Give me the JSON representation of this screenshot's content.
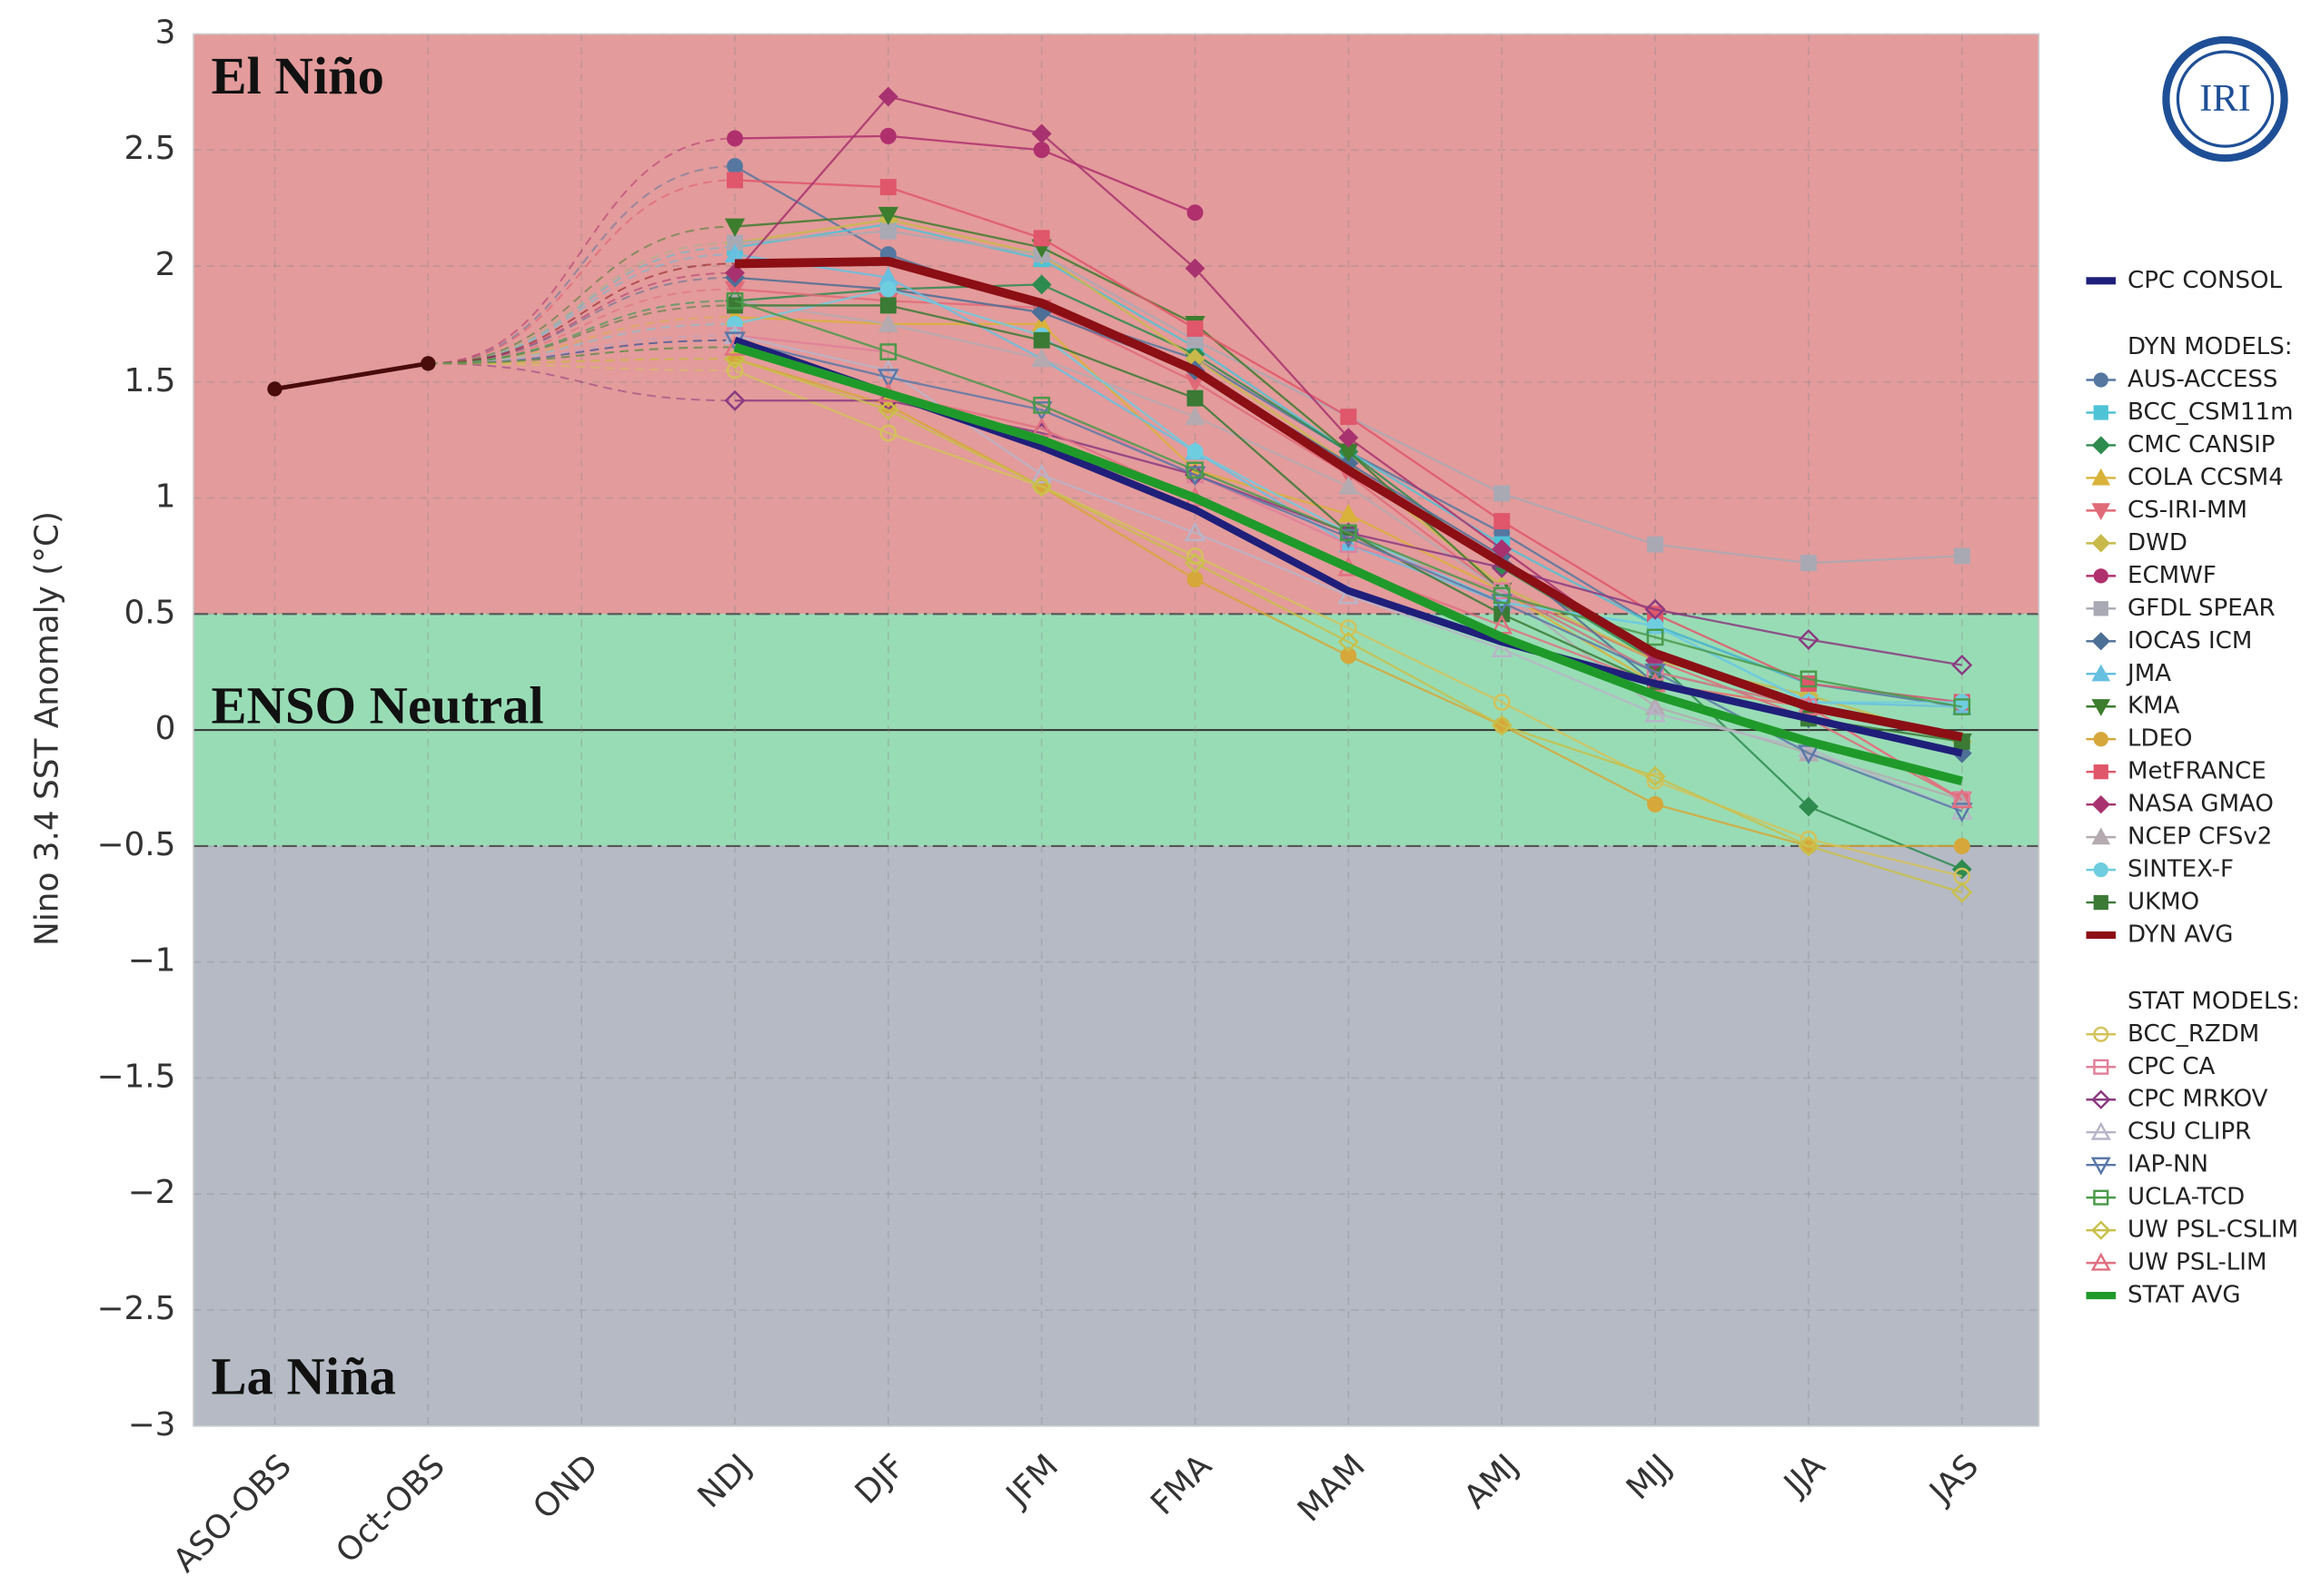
{
  "chart_data": {
    "type": "line",
    "y_label": "Nino 3.4 SST Anomaly (°C)",
    "logo": "IRI",
    "categories": [
      "ASO-OBS",
      "Oct-OBS",
      "OND",
      "NDJ",
      "DJF",
      "JFM",
      "FMA",
      "MAM",
      "AMJ",
      "MJJ",
      "JJA",
      "JAS"
    ],
    "ylim": [
      -3,
      3
    ],
    "yticks": [
      {
        "value": -3,
        "label": "−3"
      },
      {
        "value": -2.5,
        "label": "−2.5"
      },
      {
        "value": -2,
        "label": "−2"
      },
      {
        "value": -1.5,
        "label": "−1.5"
      },
      {
        "value": -1,
        "label": "−1"
      },
      {
        "value": -0.5,
        "label": "−0.5"
      },
      0,
      0.5,
      1,
      1.5,
      2,
      2.5,
      3
    ],
    "grid": true,
    "zones": [
      {
        "label": "El Niño",
        "from": 0.5,
        "to": 3,
        "color": "#e39b9b"
      },
      {
        "label": "ENSO Neutral",
        "from": -0.5,
        "to": 0.5,
        "color": "#98dcb5"
      },
      {
        "label": "La Niña",
        "from": -3,
        "to": -0.5,
        "color": "#b5bac5"
      }
    ],
    "legend_headings": [
      "DYN MODELS:",
      "STAT MODELS:"
    ],
    "observed": {
      "color": "#4a0b0b",
      "values": [
        1.47,
        1.58,
        null,
        null,
        null,
        null,
        null,
        null,
        null,
        null,
        null,
        null
      ]
    },
    "series": [
      {
        "name": "CPC CONSOL",
        "color": "#1f1f7a",
        "width": 5,
        "values": [
          null,
          null,
          null,
          1.68,
          1.45,
          1.22,
          0.95,
          0.6,
          0.38,
          0.2,
          0.05,
          -0.1
        ]
      },
      {
        "name": "AUS-ACCESS",
        "color": "#5577a0",
        "marker": "circle",
        "filled": true,
        "values": [
          null,
          null,
          null,
          2.43,
          2.05,
          1.82,
          1.6,
          1.2,
          0.85,
          0.45,
          0.2,
          0.1
        ]
      },
      {
        "name": "BCC_CSM11m",
        "color": "#4fc3d6",
        "marker": "square",
        "filled": true,
        "values": [
          null,
          null,
          null,
          2.08,
          2.18,
          2.03,
          1.65,
          1.2,
          0.8,
          0.45,
          0.2,
          0.12
        ]
      },
      {
        "name": "CMC CANSIP",
        "color": "#2e8b4f",
        "marker": "diamond",
        "filled": true,
        "values": [
          null,
          null,
          null,
          1.85,
          1.9,
          1.92,
          1.62,
          1.2,
          0.7,
          0.3,
          -0.33,
          -0.6
        ]
      },
      {
        "name": "COLA CCSM4",
        "color": "#d9b23a",
        "marker": "triangle",
        "filled": true,
        "values": [
          null,
          null,
          null,
          1.78,
          1.75,
          1.75,
          1.12,
          0.93,
          0.6,
          0.2,
          0.1,
          -0.3
        ]
      },
      {
        "name": "CS-IRI-MM",
        "color": "#e06a78",
        "marker": "triangle-down",
        "filled": true,
        "values": [
          null,
          null,
          null,
          1.9,
          1.85,
          1.82,
          1.5,
          1.1,
          0.6,
          0.3,
          0.05,
          -0.3
        ]
      },
      {
        "name": "DWD",
        "color": "#c9b94a",
        "marker": "diamond",
        "filled": true,
        "values": [
          null,
          null,
          null,
          2.1,
          2.2,
          2.05,
          1.6,
          1.15,
          0.62,
          0.3,
          0.15,
          -0.05
        ]
      },
      {
        "name": "ECMWF",
        "color": "#b0306e",
        "marker": "circle",
        "filled": true,
        "values": [
          null,
          null,
          null,
          2.55,
          2.56,
          2.5,
          2.23,
          null,
          null,
          null,
          null,
          null
        ]
      },
      {
        "name": "GFDL SPEAR",
        "color": "#a9a9b4",
        "marker": "square",
        "filled": true,
        "values": [
          null,
          null,
          null,
          2.1,
          2.15,
          2.05,
          1.68,
          1.35,
          1.02,
          0.8,
          0.72,
          0.75
        ]
      },
      {
        "name": "IOCAS ICM",
        "color": "#4d6f96",
        "marker": "diamond",
        "filled": true,
        "values": [
          null,
          null,
          null,
          1.95,
          1.9,
          1.8,
          1.55,
          1.15,
          0.75,
          0.2,
          0.05,
          -0.1
        ]
      },
      {
        "name": "JMA",
        "color": "#67c0e0",
        "marker": "triangle",
        "filled": true,
        "values": [
          null,
          null,
          null,
          2.05,
          1.95,
          1.6,
          1.2,
          0.8,
          0.55,
          0.45,
          0.12,
          0.1
        ]
      },
      {
        "name": "KMA",
        "color": "#3d7d2e",
        "marker": "triangle-down",
        "filled": true,
        "values": [
          null,
          null,
          null,
          2.17,
          2.22,
          2.08,
          1.75,
          1.2,
          0.6,
          0.25,
          0.1,
          -0.05
        ]
      },
      {
        "name": "LDEO",
        "color": "#d6a73a",
        "marker": "circle",
        "filled": true,
        "values": [
          null,
          null,
          null,
          1.6,
          1.4,
          1.05,
          0.65,
          0.32,
          0.02,
          -0.32,
          -0.5,
          -0.5
        ]
      },
      {
        "name": "MetFRANCE",
        "color": "#e0566a",
        "marker": "square",
        "filled": true,
        "values": [
          null,
          null,
          null,
          2.37,
          2.34,
          2.12,
          1.73,
          1.35,
          0.9,
          0.5,
          0.2,
          0.12
        ]
      },
      {
        "name": "NASA GMAO",
        "color": "#a8326f",
        "marker": "diamond",
        "filled": true,
        "values": [
          null,
          null,
          null,
          1.97,
          2.73,
          2.57,
          1.99,
          1.26,
          0.78,
          0.3,
          null,
          null
        ]
      },
      {
        "name": "NCEP CFSv2",
        "color": "#b4aab0",
        "marker": "triangle",
        "filled": true,
        "values": [
          null,
          null,
          null,
          1.85,
          1.75,
          1.6,
          1.35,
          1.05,
          0.6,
          0.1,
          -0.1,
          -0.3
        ]
      },
      {
        "name": "SINTEX-F",
        "color": "#6fcde0",
        "marker": "circle",
        "filled": true,
        "values": [
          null,
          null,
          null,
          1.75,
          1.9,
          1.7,
          1.2,
          0.85,
          0.55,
          0.45,
          0.12,
          0.12
        ]
      },
      {
        "name": "UKMO",
        "color": "#3a7a35",
        "marker": "square",
        "filled": true,
        "values": [
          null,
          null,
          null,
          1.83,
          1.83,
          1.68,
          1.43,
          0.85,
          0.5,
          0.2,
          0.05,
          -0.05
        ]
      },
      {
        "name": "DYN AVG",
        "color": "#8b0f14",
        "width": 6,
        "values": [
          null,
          null,
          null,
          2.01,
          2.02,
          1.84,
          1.55,
          1.12,
          0.72,
          0.33,
          0.1,
          -0.03
        ]
      },
      {
        "name": "BCC_RZDM",
        "color": "#d4c25a",
        "marker": "circle",
        "filled": false,
        "values": [
          null,
          null,
          null,
          1.55,
          1.28,
          1.05,
          0.75,
          0.44,
          0.12,
          -0.22,
          -0.47,
          -0.63
        ]
      },
      {
        "name": "CPC CA",
        "color": "#e0809a",
        "marker": "square",
        "filled": false,
        "values": [
          null,
          null,
          null,
          1.7,
          1.63,
          1.4,
          1.1,
          0.8,
          0.6,
          0.25,
          0.1,
          -0.3
        ]
      },
      {
        "name": "CPC MRKOV",
        "color": "#8a3a80",
        "marker": "diamond",
        "filled": false,
        "values": [
          null,
          null,
          null,
          1.42,
          1.42,
          1.28,
          1.1,
          0.85,
          0.7,
          0.52,
          0.39,
          0.28
        ]
      },
      {
        "name": "CSU CLIPR",
        "color": "#b8b4c8",
        "marker": "triangle",
        "filled": false,
        "values": [
          null,
          null,
          null,
          1.7,
          1.55,
          1.1,
          0.85,
          0.58,
          0.35,
          0.07,
          -0.08,
          -0.35
        ]
      },
      {
        "name": "IAP-NN",
        "color": "#5a78a8",
        "marker": "triangle-down",
        "filled": false,
        "values": [
          null,
          null,
          null,
          1.68,
          1.52,
          1.38,
          1.1,
          0.83,
          0.55,
          0.25,
          -0.1,
          -0.35
        ]
      },
      {
        "name": "UCLA-TCD",
        "color": "#4a9a4a",
        "marker": "square",
        "filled": false,
        "values": [
          null,
          null,
          null,
          1.85,
          1.63,
          1.4,
          1.12,
          0.85,
          0.58,
          0.4,
          0.22,
          0.1
        ]
      },
      {
        "name": "UW PSL-CSLIM",
        "color": "#c8c04a",
        "marker": "diamond",
        "filled": false,
        "values": [
          null,
          null,
          null,
          1.6,
          1.38,
          1.05,
          0.72,
          0.38,
          0.02,
          -0.2,
          -0.5,
          -0.7
        ]
      },
      {
        "name": "UW PSL-LIM",
        "color": "#e07080",
        "marker": "triangle",
        "filled": false,
        "values": [
          null,
          null,
          null,
          1.65,
          1.45,
          1.3,
          1.0,
          0.7,
          0.45,
          0.2,
          0.1,
          -0.3
        ]
      },
      {
        "name": "STAT AVG",
        "color": "#1f9a2a",
        "width": 6,
        "values": [
          null,
          null,
          null,
          1.65,
          1.45,
          1.25,
          1.0,
          0.7,
          0.4,
          0.15,
          -0.05,
          -0.22
        ]
      }
    ]
  }
}
